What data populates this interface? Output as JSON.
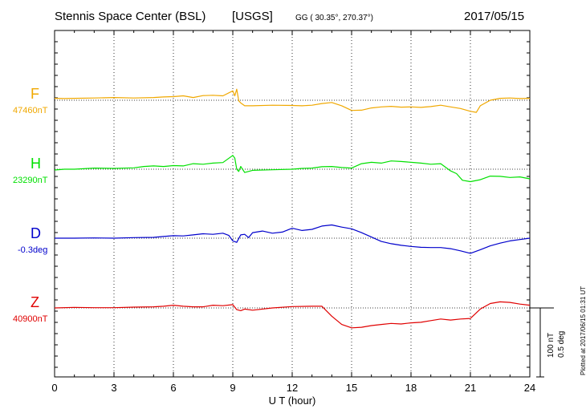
{
  "header": {
    "station": "Stennis Space Center (BSL)",
    "source": "[USGS]",
    "coords": "GG ( 30.35°, 270.37°)",
    "date": "2017/05/15"
  },
  "plotted_note": "Plotted at 2017/06/15 01:31  UT",
  "scale": {
    "nt": "100 nT",
    "deg": "0.5 deg"
  },
  "colors": {
    "F": "#f0a800",
    "H": "#00e000",
    "D": "#0000cc",
    "Z": "#e00000"
  },
  "chart_data": {
    "type": "line",
    "title": "Stennis Space Center (BSL)  [USGS]",
    "xlabel": "U T (hour)",
    "xlim": [
      0,
      24
    ],
    "xticks": [
      "0",
      "3",
      "6",
      "9",
      "12",
      "15",
      "18",
      "21",
      "24"
    ],
    "grid": true,
    "units_per_row": 250,
    "series": [
      {
        "name": "F",
        "baseline_label": "47460nT",
        "unit": "nT",
        "color": "#f0a800",
        "x": [
          0,
          0.5,
          1,
          2,
          3,
          4,
          5,
          5.5,
          6,
          6.5,
          7,
          7.5,
          8,
          8.5,
          9,
          9.1,
          9.2,
          9.3,
          9.4,
          9.6,
          10,
          11,
          12,
          12.5,
          13,
          13.5,
          14,
          14.5,
          15,
          15.5,
          16,
          16.5,
          17,
          17.5,
          18,
          18.5,
          19,
          19.5,
          20,
          20.5,
          21,
          21.3,
          21.5,
          22,
          22.5,
          23,
          23.5,
          24
        ],
        "y": [
          7,
          6,
          7,
          8,
          10,
          8,
          10,
          12,
          13,
          16,
          10,
          17,
          18,
          16,
          34,
          16,
          40,
          -2,
          -10,
          -20,
          -20,
          -18,
          -19,
          -20,
          -18,
          -12,
          -8,
          -20,
          -37,
          -36,
          -28,
          -24,
          -22,
          -25,
          -24,
          -26,
          -23,
          -18,
          -24,
          -30,
          -40,
          -44,
          -20,
          0,
          7,
          8,
          6,
          7
        ]
      },
      {
        "name": "H",
        "baseline_label": "23290nT",
        "unit": "nT",
        "color": "#00e000",
        "x": [
          0,
          0.5,
          1,
          2,
          3,
          4,
          4.5,
          5,
          5.5,
          6,
          6.5,
          7,
          7.5,
          8,
          8.5,
          9,
          9.1,
          9.2,
          9.3,
          9.4,
          9.6,
          10,
          11,
          12,
          12.5,
          13,
          13.5,
          14,
          14.5,
          15,
          15.5,
          16,
          16.5,
          17,
          17.5,
          18,
          18.5,
          19,
          19.5,
          20,
          20.3,
          20.6,
          21,
          21.5,
          22,
          22.5,
          23,
          23.5,
          24
        ],
        "y": [
          -3,
          0,
          0,
          4,
          3,
          5,
          10,
          12,
          10,
          13,
          12,
          20,
          18,
          22,
          24,
          50,
          40,
          0,
          -8,
          10,
          -12,
          -4,
          -2,
          0,
          3,
          4,
          9,
          10,
          6,
          4,
          20,
          25,
          22,
          30,
          28,
          25,
          22,
          18,
          20,
          -6,
          -16,
          -40,
          -45,
          -38,
          -25,
          -26,
          -30,
          -28,
          -35
        ]
      },
      {
        "name": "D",
        "baseline_label": "-0.3deg",
        "unit": "deg",
        "color": "#0000cc",
        "x": [
          0,
          1,
          2,
          3,
          4,
          5,
          5.5,
          6,
          6.5,
          7,
          7.5,
          8,
          8.5,
          8.8,
          9,
          9.2,
          9.4,
          9.6,
          9.8,
          10,
          10.5,
          11,
          11.5,
          12,
          12.5,
          13,
          13.5,
          14,
          14.5,
          15,
          15.5,
          16,
          16.5,
          17,
          17.5,
          18,
          18.5,
          19,
          19.5,
          20,
          20.5,
          21,
          21.5,
          22,
          22.5,
          23,
          23.5,
          24
        ],
        "y": [
          0,
          0,
          1,
          0,
          2,
          3,
          6,
          9,
          8,
          12,
          16,
          14,
          18,
          10,
          -10,
          -15,
          12,
          14,
          2,
          20,
          26,
          18,
          22,
          36,
          28,
          32,
          44,
          48,
          40,
          34,
          20,
          4,
          -12,
          -20,
          -26,
          -30,
          -33,
          -34,
          -34,
          -38,
          -46,
          -55,
          -42,
          -28,
          -18,
          -10,
          -5,
          0
        ]
      },
      {
        "name": "Z",
        "baseline_label": "40900nT",
        "unit": "nT",
        "color": "#e00000",
        "x": [
          0,
          1,
          2,
          3,
          4,
          5,
          5.5,
          6,
          6.5,
          7,
          7.5,
          8,
          8.5,
          9,
          9.2,
          9.4,
          9.6,
          10,
          11,
          12,
          13,
          13.5,
          14,
          14.5,
          15,
          15.5,
          16,
          16.5,
          17,
          17.5,
          18,
          18.5,
          19,
          19.5,
          20,
          20.5,
          21,
          21.5,
          22,
          22.5,
          23,
          23.5,
          24
        ],
        "y": [
          0,
          2,
          1,
          1,
          3,
          4,
          6,
          10,
          6,
          4,
          4,
          10,
          8,
          12,
          -6,
          -10,
          -4,
          -8,
          0,
          5,
          6,
          6,
          -30,
          -60,
          -72,
          -70,
          -64,
          -60,
          -56,
          -58,
          -54,
          -52,
          -46,
          -40,
          -44,
          -40,
          -38,
          -4,
          16,
          22,
          20,
          14,
          10
        ]
      }
    ]
  }
}
